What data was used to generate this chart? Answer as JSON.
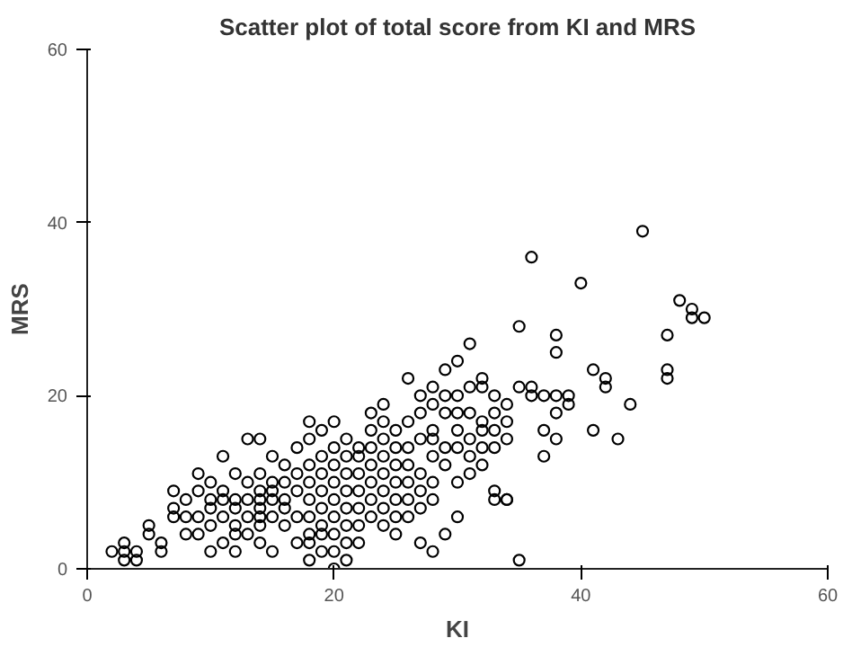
{
  "chart_data": {
    "type": "scatter",
    "title": "Scatter plot of total score from KI and MRS",
    "xlabel": "KI",
    "ylabel": "MRS",
    "xlim": [
      0,
      60
    ],
    "ylim": [
      0,
      60
    ],
    "xticks": [
      0,
      20,
      40,
      60
    ],
    "yticks": [
      0,
      20,
      40,
      60
    ],
    "grid": false,
    "marker": "circle",
    "series": [
      {
        "color": "#000000",
        "x": [
          2,
          3,
          3,
          3,
          4,
          4,
          5,
          5,
          6,
          6,
          7,
          7,
          7,
          8,
          8,
          8,
          9,
          9,
          9,
          9,
          10,
          10,
          10,
          10,
          10,
          11,
          11,
          11,
          11,
          11,
          12,
          12,
          12,
          12,
          12,
          12,
          13,
          13,
          13,
          13,
          13,
          14,
          14,
          14,
          14,
          14,
          14,
          14,
          14,
          15,
          15,
          15,
          15,
          15,
          15,
          16,
          16,
          16,
          16,
          16,
          17,
          17,
          17,
          17,
          17,
          18,
          18,
          18,
          18,
          18,
          18,
          18,
          18,
          18,
          19,
          19,
          19,
          19,
          19,
          19,
          19,
          19,
          20,
          20,
          20,
          20,
          20,
          20,
          20,
          20,
          20,
          21,
          21,
          21,
          21,
          21,
          21,
          21,
          21,
          22,
          22,
          22,
          22,
          22,
          22,
          22,
          23,
          23,
          23,
          23,
          23,
          23,
          23,
          24,
          24,
          24,
          24,
          24,
          24,
          24,
          24,
          25,
          25,
          25,
          25,
          25,
          25,
          25,
          26,
          26,
          26,
          26,
          26,
          26,
          26,
          27,
          27,
          27,
          27,
          27,
          27,
          27,
          28,
          28,
          28,
          28,
          28,
          28,
          28,
          28,
          29,
          29,
          29,
          29,
          29,
          29,
          30,
          30,
          30,
          30,
          30,
          30,
          30,
          31,
          31,
          31,
          31,
          31,
          31,
          32,
          32,
          32,
          32,
          32,
          32,
          33,
          33,
          33,
          33,
          33,
          33,
          34,
          34,
          34,
          34,
          34,
          35,
          35,
          35,
          36,
          36,
          36,
          37,
          37,
          37,
          38,
          38,
          38,
          38,
          38,
          39,
          39,
          40,
          41,
          41,
          42,
          42,
          43,
          44,
          45,
          47,
          47,
          47,
          48,
          49,
          49,
          50
        ],
        "values": [
          2,
          1,
          2,
          3,
          1,
          2,
          4,
          5,
          2,
          3,
          6,
          7,
          9,
          4,
          6,
          8,
          4,
          6,
          9,
          11,
          2,
          5,
          7,
          8,
          10,
          3,
          6,
          8,
          9,
          13,
          2,
          4,
          5,
          7,
          8,
          11,
          4,
          6,
          8,
          10,
          15,
          3,
          5,
          6,
          7,
          8,
          9,
          11,
          15,
          2,
          6,
          8,
          9,
          10,
          13,
          5,
          7,
          8,
          10,
          12,
          3,
          6,
          9,
          11,
          14,
          1,
          3,
          4,
          6,
          8,
          10,
          12,
          15,
          17,
          2,
          4,
          5,
          7,
          9,
          11,
          13,
          16,
          0,
          2,
          4,
          6,
          8,
          10,
          12,
          14,
          17,
          1,
          3,
          5,
          7,
          9,
          11,
          13,
          15,
          3,
          5,
          7,
          9,
          11,
          13,
          14,
          6,
          8,
          10,
          12,
          14,
          16,
          18,
          5,
          7,
          9,
          11,
          13,
          15,
          17,
          19,
          4,
          6,
          8,
          10,
          12,
          14,
          16,
          6,
          8,
          10,
          12,
          14,
          17,
          22,
          3,
          7,
          9,
          11,
          15,
          18,
          20,
          2,
          8,
          10,
          13,
          15,
          16,
          19,
          21,
          4,
          12,
          14,
          18,
          20,
          23,
          6,
          10,
          14,
          16,
          18,
          20,
          24,
          11,
          13,
          15,
          18,
          21,
          26,
          12,
          14,
          16,
          17,
          21,
          22,
          8,
          9,
          14,
          16,
          18,
          20,
          8,
          15,
          17,
          19,
          8,
          1,
          21,
          28,
          36,
          21,
          20,
          16,
          20,
          13,
          27,
          25,
          18,
          15,
          20,
          20,
          19,
          33,
          16,
          23,
          22,
          21,
          15,
          19,
          39,
          27,
          23,
          22,
          31,
          30,
          29,
          29
        ]
      }
    ]
  }
}
